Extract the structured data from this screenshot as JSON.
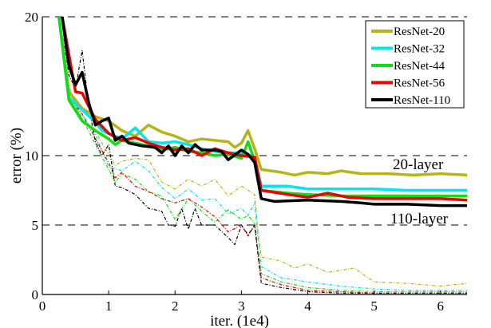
{
  "chart_data": {
    "type": "line",
    "xlabel": "iter. (1e4)",
    "ylabel": "error (%)",
    "xlim": [
      0,
      6.4
    ],
    "ylim": [
      0,
      20
    ],
    "xticks": [
      "0",
      "1",
      "2",
      "3",
      "4",
      "5",
      "6"
    ],
    "yticks": [
      "0",
      "5",
      "10",
      "20"
    ],
    "grid": "dashed horizontal lines at 5, 10, 20",
    "legend_placement": "top-right",
    "annotations": [
      {
        "text": "20-layer",
        "x": 5.3,
        "y": 9.4
      },
      {
        "text": "110-layer",
        "x": 5.3,
        "y": 5.3
      }
    ],
    "series": [
      {
        "name": "ResNet-20",
        "color": "#b5b517",
        "style": "solid",
        "x": [
          0.25,
          0.4,
          0.6,
          0.8,
          1.0,
          1.2,
          1.4,
          1.6,
          1.8,
          2.0,
          2.2,
          2.4,
          2.6,
          2.8,
          2.9,
          3.0,
          3.1,
          3.2,
          3.3,
          3.6,
          3.8,
          4.0,
          4.3,
          4.5,
          4.8,
          5.2,
          5.6,
          6.0,
          6.4
        ],
        "y": [
          20,
          14.6,
          13.4,
          12.8,
          12.5,
          11.8,
          11.4,
          12.2,
          11.7,
          11.4,
          11.0,
          11.2,
          11.1,
          11.0,
          10.6,
          10.9,
          11.8,
          10.5,
          9.0,
          8.8,
          8.6,
          8.8,
          8.7,
          8.9,
          8.7,
          8.7,
          8.6,
          8.7,
          8.6
        ]
      },
      {
        "name": "ResNet-32",
        "color": "#00e5ee",
        "style": "solid",
        "x": [
          0.25,
          0.4,
          0.6,
          0.8,
          0.9,
          1.0,
          1.2,
          1.4,
          1.6,
          1.8,
          2.0,
          2.2,
          2.4,
          2.6,
          2.8,
          3.0,
          3.1,
          3.2,
          3.3,
          3.7,
          4.0,
          4.5,
          5.0,
          5.5,
          6.0,
          6.4
        ],
        "y": [
          20,
          14.2,
          13.3,
          12.4,
          11.8,
          11.6,
          11.2,
          12.0,
          11.0,
          10.9,
          11.0,
          10.8,
          10.5,
          10.3,
          10.2,
          10.2,
          10.1,
          9.8,
          7.8,
          7.8,
          7.6,
          7.6,
          7.6,
          7.5,
          7.5,
          7.5
        ]
      },
      {
        "name": "ResNet-44",
        "color": "#11dd11",
        "style": "solid",
        "x": [
          0.25,
          0.4,
          0.6,
          0.8,
          1.0,
          1.1,
          1.2,
          1.4,
          1.6,
          1.8,
          2.0,
          2.2,
          2.4,
          2.6,
          2.8,
          3.0,
          3.1,
          3.2,
          3.3,
          3.7,
          4.0,
          4.5,
          5.0,
          5.5,
          6.0,
          6.4
        ],
        "y": [
          20,
          14.0,
          12.5,
          11.8,
          11.2,
          10.8,
          11.1,
          10.9,
          10.7,
          10.4,
          10.6,
          10.3,
          10.2,
          10.0,
          10.1,
          9.8,
          11.0,
          9.6,
          7.5,
          7.3,
          7.2,
          7.1,
          7.1,
          7.1,
          7.1,
          7.1
        ]
      },
      {
        "name": "ResNet-56",
        "color": "#ee0000",
        "style": "solid",
        "x": [
          0.3,
          0.5,
          0.6,
          0.8,
          1.0,
          1.2,
          1.4,
          1.6,
          1.8,
          2.0,
          2.2,
          2.4,
          2.6,
          2.8,
          3.0,
          3.2,
          3.3,
          3.7,
          4.0,
          4.3,
          4.6,
          5.0,
          5.5,
          6.0,
          6.4
        ],
        "y": [
          20,
          14.6,
          14.5,
          12.6,
          11.6,
          11.1,
          11.3,
          10.9,
          10.6,
          10.4,
          10.5,
          10.0,
          10.5,
          10.2,
          10.0,
          9.9,
          7.5,
          7.2,
          7.0,
          7.3,
          7.0,
          6.9,
          6.9,
          6.9,
          6.8
        ]
      },
      {
        "name": "ResNet-110",
        "color": "#000000",
        "style": "solid",
        "x": [
          0.3,
          0.4,
          0.5,
          0.6,
          0.7,
          0.8,
          0.9,
          1.0,
          1.1,
          1.2,
          1.3,
          1.5,
          1.7,
          1.8,
          1.9,
          2.0,
          2.1,
          2.2,
          2.3,
          2.4,
          2.6,
          2.7,
          2.8,
          3.0,
          3.1,
          3.2,
          3.3,
          3.5,
          4.0,
          4.5,
          4.8,
          5.0,
          5.5,
          6.0,
          6.4
        ],
        "y": [
          20,
          16.5,
          15.1,
          16.0,
          13.8,
          12.2,
          12.5,
          12.7,
          11.1,
          11.4,
          10.9,
          10.7,
          10.6,
          10.2,
          10.7,
          10.0,
          10.7,
          10.2,
          10.8,
          10.4,
          10.4,
          10.3,
          9.7,
          10.4,
          10.1,
          9.5,
          6.9,
          6.7,
          6.8,
          6.7,
          6.6,
          6.5,
          6.5,
          6.4,
          6.4
        ]
      },
      {
        "color": "#b5b517",
        "style": "dashed",
        "x": [
          0.3,
          0.4,
          0.6,
          0.8,
          1.0,
          1.1,
          1.2,
          1.4,
          1.6,
          1.8,
          2.0,
          2.2,
          2.4,
          2.6,
          2.8,
          3.0,
          3.2,
          3.25,
          3.3,
          3.6,
          3.8,
          4.0,
          4.3,
          4.7,
          5.0,
          5.5,
          6.0,
          6.4
        ],
        "y": [
          20,
          15.0,
          12.4,
          11.7,
          10.1,
          9.3,
          9.6,
          9.8,
          9.7,
          8.1,
          7.6,
          8.3,
          7.8,
          8.3,
          7.1,
          7.8,
          7.2,
          4.5,
          2.7,
          2.4,
          1.9,
          2.2,
          1.6,
          1.9,
          0.9,
          0.8,
          0.6,
          0.8
        ]
      },
      {
        "color": "#00e5ee",
        "style": "dashed",
        "x": [
          0.3,
          0.4,
          0.6,
          0.8,
          1.0,
          1.2,
          1.4,
          1.6,
          1.8,
          2.0,
          2.2,
          2.4,
          2.6,
          2.8,
          3.0,
          3.1,
          3.2,
          3.25,
          3.3,
          3.6,
          4.0,
          4.5,
          5.0,
          5.5,
          6.0,
          6.4
        ],
        "y": [
          20,
          14.0,
          13.0,
          11.5,
          9.2,
          8.9,
          9.6,
          8.9,
          7.7,
          6.9,
          7.6,
          6.8,
          6.9,
          5.8,
          6.2,
          5.7,
          6.6,
          4.0,
          2.0,
          1.2,
          0.9,
          0.6,
          0.4,
          0.3,
          0.3,
          0.3
        ]
      },
      {
        "color": "#11dd11",
        "style": "dashed",
        "x": [
          0.3,
          0.4,
          0.6,
          0.8,
          1.0,
          1.1,
          1.2,
          1.4,
          1.6,
          1.8,
          2.0,
          2.2,
          2.4,
          2.6,
          2.8,
          3.0,
          3.1,
          3.2,
          3.25,
          3.3,
          3.6,
          4.0,
          4.5,
          5.0,
          5.5,
          6.0,
          6.4
        ],
        "y": [
          20,
          14.3,
          12.7,
          10.8,
          9.0,
          8.1,
          8.7,
          8.3,
          7.4,
          7.1,
          5.4,
          6.9,
          6.0,
          5.2,
          6.1,
          5.4,
          5.7,
          5.1,
          3.0,
          1.5,
          0.9,
          0.5,
          0.3,
          0.2,
          0.2,
          0.2,
          0.2
        ]
      },
      {
        "color": "#ee0000",
        "style": "dashed",
        "x": [
          0.3,
          0.4,
          0.6,
          0.8,
          1.0,
          1.1,
          1.2,
          1.4,
          1.6,
          1.8,
          2.0,
          2.2,
          2.4,
          2.6,
          2.8,
          3.0,
          3.1,
          3.2,
          3.25,
          3.3,
          3.6,
          4.0,
          4.5,
          5.0,
          5.5,
          6.0,
          6.4
        ],
        "y": [
          20,
          14.3,
          13.0,
          11.2,
          9.5,
          8.4,
          8.8,
          7.8,
          7.4,
          6.9,
          6.6,
          6.9,
          6.3,
          5.6,
          4.5,
          5.0,
          4.2,
          5.0,
          3.0,
          1.2,
          0.7,
          0.3,
          0.2,
          0.1,
          0.1,
          0.1,
          0.1
        ]
      },
      {
        "color": "#000000",
        "style": "dashed",
        "x": [
          0.3,
          0.4,
          0.5,
          0.6,
          0.7,
          0.8,
          0.9,
          1.0,
          1.1,
          1.2,
          1.4,
          1.6,
          1.8,
          1.9,
          2.0,
          2.1,
          2.2,
          2.3,
          2.4,
          2.6,
          2.8,
          2.9,
          3.0,
          3.1,
          3.2,
          3.25,
          3.3,
          3.6,
          4.0,
          4.5,
          5.0,
          5.5,
          6.0,
          6.4
        ],
        "y": [
          20,
          15.8,
          14.8,
          17.6,
          13.5,
          11.0,
          10.0,
          10.8,
          7.8,
          7.7,
          7.2,
          6.2,
          6.0,
          5.0,
          4.9,
          6.2,
          4.7,
          6.2,
          5.0,
          5.0,
          4.1,
          3.6,
          5.0,
          4.3,
          5.0,
          2.8,
          0.8,
          0.5,
          0.2,
          0.1,
          0.1,
          0.1,
          0.1,
          0.1
        ]
      }
    ]
  }
}
